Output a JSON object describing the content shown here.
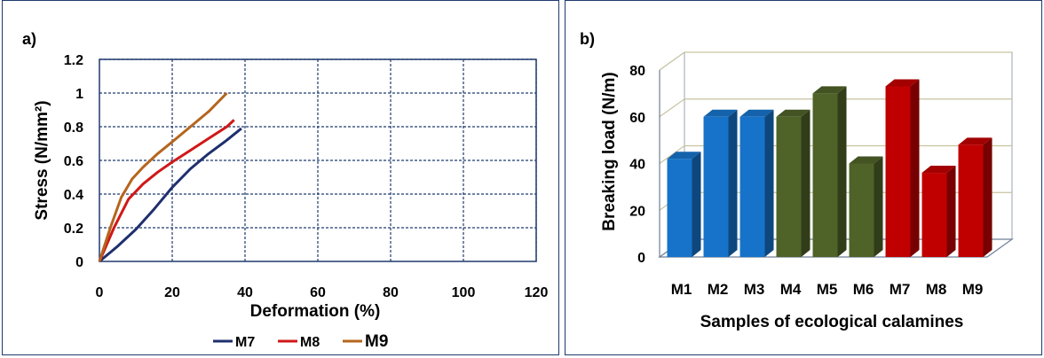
{
  "chart_data": [
    {
      "type": "line",
      "panel_label": "a)",
      "xlabel": "Deformation (%)",
      "ylabel": "Stress (N/mm²)",
      "xlim": [
        0,
        120
      ],
      "ylim": [
        0,
        1.2
      ],
      "x_ticks": [
        "0",
        "20",
        "40",
        "60",
        "80",
        "100",
        "120"
      ],
      "y_ticks": [
        "0",
        "0.2",
        "0.4",
        "0.6",
        "0.8",
        "1",
        "1.2"
      ],
      "grid": true,
      "legend_position": "bottom",
      "series": [
        {
          "name": "M7",
          "color": "#1f2f6e",
          "x": [
            0,
            5,
            10,
            15,
            20,
            25,
            30,
            35,
            39
          ],
          "y": [
            0,
            0.09,
            0.19,
            0.31,
            0.44,
            0.55,
            0.64,
            0.72,
            0.79
          ]
        },
        {
          "name": "M8",
          "color": "#d01818",
          "x": [
            0,
            4,
            8,
            12,
            16,
            20,
            25,
            30,
            35,
            37
          ],
          "y": [
            0,
            0.2,
            0.37,
            0.46,
            0.53,
            0.59,
            0.66,
            0.73,
            0.8,
            0.84
          ]
        },
        {
          "name": "M9",
          "color": "#b5651d",
          "x": [
            0,
            3,
            6,
            9,
            12,
            16,
            20,
            25,
            30,
            35
          ],
          "y": [
            0,
            0.2,
            0.38,
            0.49,
            0.56,
            0.64,
            0.71,
            0.8,
            0.89,
            1.0
          ]
        }
      ]
    },
    {
      "type": "bar",
      "panel_label": "b)",
      "xlabel": "Samples of ecological calamines",
      "ylabel": "Breaking load (N/m)",
      "ylim": [
        0,
        80
      ],
      "y_ticks": [
        "0",
        "20",
        "40",
        "60",
        "80"
      ],
      "grid": true,
      "categories": [
        "M1",
        "M2",
        "M3",
        "M4",
        "M5",
        "M6",
        "M7",
        "M8",
        "M9"
      ],
      "values": [
        42,
        60,
        60,
        60,
        70,
        40,
        73,
        36,
        48
      ],
      "bar_colors": [
        "#1673c9",
        "#1673c9",
        "#1673c9",
        "#4f6228",
        "#4f6228",
        "#4f6228",
        "#c00000",
        "#c00000",
        "#c00000"
      ]
    }
  ]
}
